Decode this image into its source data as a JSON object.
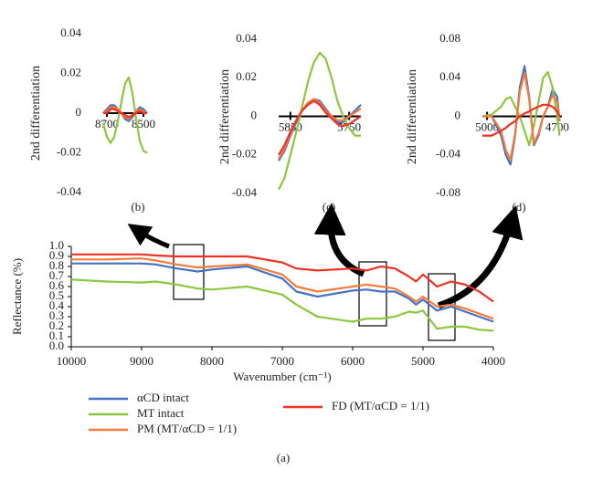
{
  "chart_data": [
    {
      "type": "line",
      "y_label": "Reflectance (%)",
      "x_label": "Wavenumber (cm⁻¹)",
      "panel_label": "(a)",
      "xlim": [
        10000,
        4000
      ],
      "xticks": [
        10000,
        9000,
        8000,
        7000,
        6000,
        5000,
        4000
      ],
      "ylim": [
        0,
        1
      ],
      "yticks": [
        {
          "value": 0,
          "label": "0.0"
        },
        0.1,
        0.2,
        0.3,
        0.4,
        0.5,
        0.6,
        0.7,
        0.8,
        0.9,
        {
          "value": 1,
          "label": "1.0"
        }
      ],
      "x": [
        10000,
        9500,
        9000,
        8800,
        8500,
        8200,
        8000,
        7500,
        7000,
        6800,
        6500,
        6000,
        5800,
        5600,
        5400,
        5200,
        5100,
        5000,
        4800,
        4600,
        4400,
        4200,
        4000
      ],
      "series": [
        {
          "name": "αCD intact",
          "color": "#4472c4",
          "values": [
            0.83,
            0.83,
            0.83,
            0.82,
            0.78,
            0.75,
            0.77,
            0.8,
            0.68,
            0.55,
            0.5,
            0.56,
            0.57,
            0.55,
            0.55,
            0.48,
            0.42,
            0.47,
            0.36,
            0.4,
            0.35,
            0.3,
            0.25
          ]
        },
        {
          "name": "MT intact",
          "color": "#8dc63f",
          "values": [
            0.67,
            0.65,
            0.64,
            0.65,
            0.62,
            0.58,
            0.57,
            0.6,
            0.52,
            0.42,
            0.3,
            0.25,
            0.28,
            0.28,
            0.3,
            0.35,
            0.34,
            0.36,
            0.18,
            0.2,
            0.2,
            0.17,
            0.16
          ]
        },
        {
          "name": "PM (MT/αCD = 1/1)",
          "color": "#f47b3a",
          "values": [
            0.87,
            0.87,
            0.88,
            0.86,
            0.82,
            0.79,
            0.8,
            0.82,
            0.72,
            0.6,
            0.55,
            0.6,
            0.62,
            0.6,
            0.58,
            0.5,
            0.45,
            0.5,
            0.4,
            0.42,
            0.38,
            0.33,
            0.28
          ]
        },
        {
          "name": "FD (MT/αCD = 1/1)",
          "color": "#ee3124",
          "values": [
            0.92,
            0.92,
            0.92,
            0.91,
            0.9,
            0.9,
            0.9,
            0.9,
            0.84,
            0.78,
            0.76,
            0.78,
            0.76,
            0.8,
            0.78,
            0.7,
            0.65,
            0.72,
            0.6,
            0.65,
            0.62,
            0.55,
            0.45
          ]
        }
      ]
    },
    {
      "type": "line",
      "y_label": "2nd differentiation",
      "panel_label": "(b)",
      "xlim": [
        8720,
        8480
      ],
      "xticks": [
        8700,
        8500
      ],
      "ylim": [
        -0.04,
        0.04
      ],
      "yticks": [
        -0.04,
        -0.02,
        0,
        0.02,
        0.04
      ],
      "x": [
        8720,
        8700,
        8680,
        8660,
        8640,
        8620,
        8600,
        8580,
        8560,
        8540,
        8520,
        8500,
        8480
      ],
      "series": [
        {
          "color": "#4472c4",
          "values": [
            0,
            0.002,
            0.004,
            0.004,
            0.002,
            0,
            -0.003,
            -0.004,
            -0.002,
            0.001,
            0.003,
            0.002,
            0
          ]
        },
        {
          "color": "#8dc63f",
          "values": [
            -0.005,
            -0.012,
            -0.015,
            -0.012,
            -0.004,
            0.006,
            0.015,
            0.018,
            0.01,
            -0.003,
            -0.014,
            -0.019,
            -0.02
          ]
        },
        {
          "color": "#f47b3a",
          "values": [
            0,
            0.001,
            0.003,
            0.003,
            0.002,
            0,
            -0.002,
            -0.003,
            -0.001,
            0.001,
            0.002,
            0.001,
            0
          ]
        },
        {
          "color": "#ee3124",
          "values": [
            0,
            0,
            0.002,
            0.002,
            0.001,
            0,
            -0.001,
            -0.002,
            -0.001,
            0,
            0.001,
            0,
            0
          ]
        }
      ]
    },
    {
      "type": "line",
      "y_label": "2nd differentiation",
      "panel_label": "(c)",
      "xlim": [
        5870,
        5730
      ],
      "xticks": [
        5850,
        5750
      ],
      "ylim": [
        -0.04,
        0.04
      ],
      "yticks": [
        -0.04,
        -0.02,
        0,
        0.02,
        0.04
      ],
      "x": [
        5870,
        5860,
        5850,
        5840,
        5830,
        5820,
        5810,
        5800,
        5790,
        5780,
        5770,
        5760,
        5750,
        5740,
        5730
      ],
      "series": [
        {
          "color": "#4472c4",
          "values": [
            -0.023,
            -0.018,
            -0.01,
            -0.003,
            0.003,
            0.007,
            0.009,
            0.008,
            0.004,
            0,
            -0.003,
            -0.003,
            0,
            0.003,
            0.006
          ]
        },
        {
          "color": "#8dc63f",
          "values": [
            -0.038,
            -0.032,
            -0.02,
            -0.008,
            0.005,
            0.018,
            0.028,
            0.033,
            0.03,
            0.02,
            0.008,
            0,
            -0.006,
            -0.01,
            -0.01
          ]
        },
        {
          "color": "#f47b3a",
          "values": [
            -0.022,
            -0.017,
            -0.009,
            -0.002,
            0.003,
            0.007,
            0.009,
            0.007,
            0.003,
            0,
            -0.002,
            -0.002,
            0,
            0.002,
            0.004
          ]
        },
        {
          "color": "#ee3124",
          "values": [
            -0.02,
            -0.015,
            -0.008,
            -0.002,
            0.003,
            0.006,
            0.008,
            0.006,
            0.002,
            -0.001,
            -0.004,
            -0.005,
            -0.004,
            -0.002,
            0
          ]
        }
      ]
    },
    {
      "type": "line",
      "y_label": "2nd differentiation",
      "panel_label": "(d)",
      "xlim": [
        5020,
        4680
      ],
      "xticks": [
        5000,
        4700
      ],
      "ylim": [
        -0.08,
        0.08
      ],
      "yticks": [
        -0.08,
        -0.04,
        0,
        0.04,
        0.08
      ],
      "x": [
        5020,
        4980,
        4940,
        4920,
        4900,
        4880,
        4860,
        4840,
        4820,
        4800,
        4780,
        4760,
        4740,
        4720,
        4700,
        4690
      ],
      "series": [
        {
          "color": "#4472c4",
          "values": [
            0,
            0,
            -0.02,
            -0.04,
            -0.05,
            -0.02,
            0.03,
            0.052,
            0.02,
            -0.03,
            -0.02,
            0,
            0.01,
            0.028,
            0.02,
            -0.005
          ]
        },
        {
          "color": "#8dc63f",
          "values": [
            0,
            0.002,
            0.01,
            0.018,
            0.02,
            0.01,
            0,
            -0.015,
            -0.03,
            -0.01,
            0.015,
            0.04,
            0.046,
            0.03,
            0,
            -0.02
          ]
        },
        {
          "color": "#f47b3a",
          "values": [
            0,
            0,
            -0.015,
            -0.035,
            -0.045,
            -0.018,
            0.025,
            0.045,
            0.018,
            -0.028,
            -0.018,
            0,
            0.01,
            0.022,
            0.015,
            -0.005
          ]
        },
        {
          "color": "#ee3124",
          "values": [
            -0.02,
            -0.02,
            -0.015,
            -0.012,
            -0.008,
            -0.005,
            0,
            0.003,
            0.005,
            0.008,
            0.01,
            0.012,
            0.012,
            0.01,
            0.005,
            0
          ]
        }
      ]
    }
  ]
}
